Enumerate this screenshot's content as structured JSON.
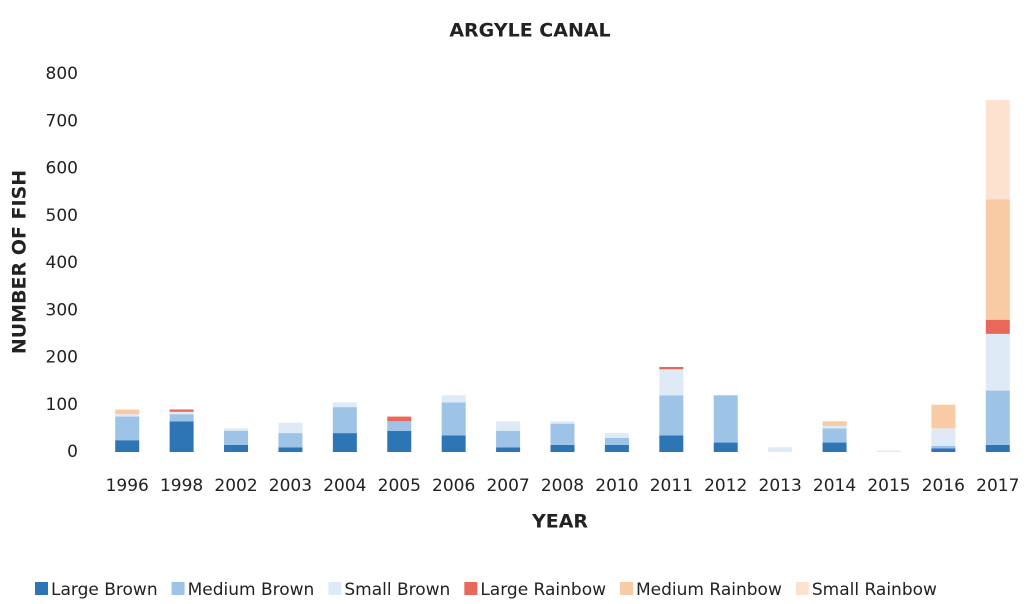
{
  "chart_data": {
    "type": "stacked_bar",
    "title": "ARGYLE CANAL",
    "x_label": "YEAR",
    "y_label": "NUMBER OF FISH",
    "categories": [
      "1996",
      "1998",
      "2002",
      "2003",
      "2004",
      "2005",
      "2006",
      "2007",
      "2008",
      "2010",
      "2011",
      "2012",
      "2013",
      "2014",
      "2015",
      "2016",
      "2017"
    ],
    "series": [
      {
        "name": "Large Brown",
        "color": "#2e75b6",
        "values": [
          25,
          65,
          15,
          10,
          40,
          45,
          35,
          10,
          15,
          15,
          35,
          20,
          0,
          20,
          0,
          8,
          15
        ]
      },
      {
        "name": "Medium Brown",
        "color": "#9dc3e6",
        "values": [
          50,
          15,
          30,
          30,
          55,
          20,
          70,
          35,
          45,
          15,
          85,
          100,
          0,
          30,
          0,
          5,
          115
        ]
      },
      {
        "name": "Small Brown",
        "color": "#deebf7",
        "values": [
          5,
          5,
          5,
          22,
          10,
          0,
          15,
          20,
          5,
          10,
          55,
          0,
          10,
          5,
          3,
          37,
          120
        ]
      },
      {
        "name": "Large Rainbow",
        "color": "#e8695a",
        "values": [
          0,
          5,
          0,
          0,
          0,
          10,
          0,
          0,
          0,
          0,
          5,
          0,
          0,
          0,
          0,
          0,
          30
        ]
      },
      {
        "name": "Medium Rainbow",
        "color": "#f8cba4",
        "values": [
          10,
          0,
          0,
          0,
          0,
          0,
          0,
          0,
          0,
          0,
          0,
          0,
          0,
          10,
          0,
          50,
          255
        ]
      },
      {
        "name": "Small Rainbow",
        "color": "#fde3cf",
        "values": [
          0,
          0,
          0,
          0,
          0,
          0,
          0,
          0,
          0,
          0,
          0,
          0,
          0,
          0,
          0,
          0,
          210
        ]
      }
    ],
    "ylim": [
      0,
      800
    ],
    "yticks": [
      0,
      100,
      200,
      300,
      400,
      500,
      600,
      700,
      800
    ],
    "grid": false,
    "legend": "bottom"
  }
}
